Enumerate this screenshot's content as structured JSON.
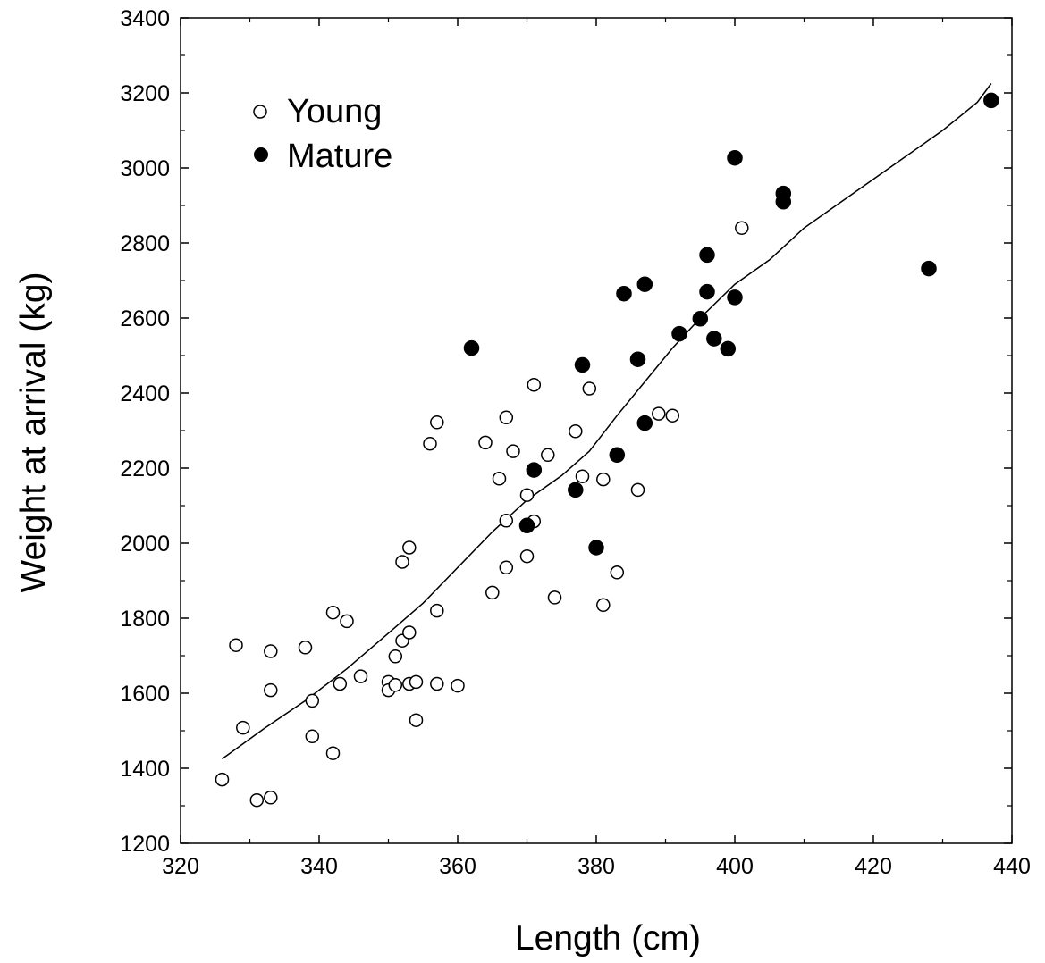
{
  "chart_data": {
    "type": "scatter",
    "title": "",
    "xlabel": "Length (cm)",
    "ylabel": "Weight at arrival (kg)",
    "xlim": [
      320,
      440
    ],
    "ylim": [
      1200,
      3400
    ],
    "xticks": [
      320,
      340,
      360,
      380,
      400,
      420,
      440
    ],
    "yticks": [
      1200,
      1400,
      1600,
      1800,
      2000,
      2200,
      2400,
      2600,
      2800,
      3000,
      3200,
      3400
    ],
    "grid": false,
    "legend_position": "top-left",
    "series": [
      {
        "name": "Young",
        "marker": "open-circle",
        "color": "#000000",
        "points": [
          [
            326,
            1370
          ],
          [
            328,
            1728
          ],
          [
            329,
            1508
          ],
          [
            331,
            1315
          ],
          [
            333,
            1322
          ],
          [
            333,
            1712
          ],
          [
            333,
            1608
          ],
          [
            338,
            1722
          ],
          [
            339,
            1580
          ],
          [
            339,
            1485
          ],
          [
            342,
            1815
          ],
          [
            342,
            1440
          ],
          [
            343,
            1625
          ],
          [
            344,
            1792
          ],
          [
            346,
            1645
          ],
          [
            350,
            1630
          ],
          [
            350,
            1608
          ],
          [
            351,
            1622
          ],
          [
            351,
            1698
          ],
          [
            352,
            1950
          ],
          [
            352,
            1740
          ],
          [
            353,
            1988
          ],
          [
            353,
            1762
          ],
          [
            353,
            1625
          ],
          [
            354,
            1630
          ],
          [
            354,
            1528
          ],
          [
            356,
            2265
          ],
          [
            357,
            2322
          ],
          [
            357,
            1820
          ],
          [
            357,
            1625
          ],
          [
            360,
            1620
          ],
          [
            364,
            2268
          ],
          [
            365,
            1868
          ],
          [
            366,
            2172
          ],
          [
            367,
            2335
          ],
          [
            367,
            2060
          ],
          [
            367,
            1935
          ],
          [
            368,
            2245
          ],
          [
            370,
            2128
          ],
          [
            370,
            1965
          ],
          [
            371,
            2422
          ],
          [
            371,
            2058
          ],
          [
            373,
            2235
          ],
          [
            374,
            1855
          ],
          [
            377,
            2298
          ],
          [
            378,
            2178
          ],
          [
            379,
            2412
          ],
          [
            381,
            2170
          ],
          [
            381,
            1835
          ],
          [
            383,
            1922
          ],
          [
            386,
            2142
          ],
          [
            389,
            2345
          ],
          [
            391,
            2340
          ],
          [
            401,
            2840
          ]
        ]
      },
      {
        "name": "Mature",
        "marker": "filled-circle",
        "color": "#000000",
        "points": [
          [
            362,
            2520
          ],
          [
            370,
            2047
          ],
          [
            371,
            2195
          ],
          [
            377,
            2142
          ],
          [
            378,
            2475
          ],
          [
            380,
            1988
          ],
          [
            383,
            2235
          ],
          [
            384,
            2665
          ],
          [
            386,
            2490
          ],
          [
            387,
            2690
          ],
          [
            387,
            2320
          ],
          [
            392,
            2558
          ],
          [
            395,
            2598
          ],
          [
            396,
            2768
          ],
          [
            396,
            2670
          ],
          [
            397,
            2545
          ],
          [
            399,
            2518
          ],
          [
            400,
            3027
          ],
          [
            400,
            2655
          ],
          [
            407,
            2932
          ],
          [
            407,
            2910
          ],
          [
            428,
            2732
          ],
          [
            437,
            3180
          ]
        ]
      }
    ],
    "trend_line": [
      [
        326,
        1425
      ],
      [
        332,
        1505
      ],
      [
        338,
        1580
      ],
      [
        344,
        1665
      ],
      [
        350,
        1760
      ],
      [
        355,
        1840
      ],
      [
        360,
        1935
      ],
      [
        365,
        2030
      ],
      [
        370,
        2115
      ],
      [
        375,
        2180
      ],
      [
        379,
        2245
      ],
      [
        383,
        2340
      ],
      [
        387,
        2430
      ],
      [
        391,
        2520
      ],
      [
        395,
        2600
      ],
      [
        400,
        2690
      ],
      [
        405,
        2755
      ],
      [
        410,
        2840
      ],
      [
        415,
        2905
      ],
      [
        420,
        2970
      ],
      [
        425,
        3035
      ],
      [
        430,
        3100
      ],
      [
        435,
        3175
      ],
      [
        437,
        3225
      ]
    ]
  }
}
